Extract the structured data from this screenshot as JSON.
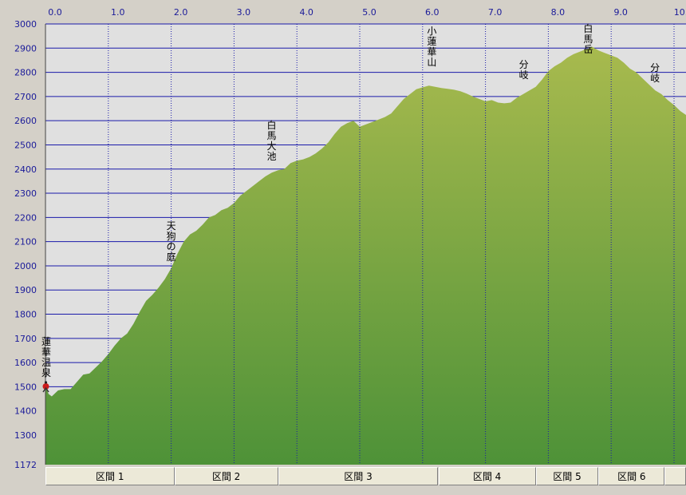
{
  "chart_data": {
    "type": "area",
    "title": "",
    "xlabel": "",
    "ylabel": "",
    "xlim": [
      0,
      10.2
    ],
    "ylim": [
      1172,
      3000
    ],
    "x_ticks": [
      "0.0",
      "1.0",
      "2.0",
      "3.0",
      "4.0",
      "5.0",
      "6.0",
      "7.0",
      "8.0",
      "9.0",
      "10.0"
    ],
    "y_ticks": [
      "3000",
      "2900",
      "2800",
      "2700",
      "2600",
      "2500",
      "2400",
      "2300",
      "2200",
      "2100",
      "2000",
      "1900",
      "1800",
      "1700",
      "1600",
      "1500",
      "1400",
      "1300",
      "1172"
    ],
    "grid": true,
    "colors": {
      "plot_bg": "#e0e0e0",
      "fill_top": "#a8ba4e",
      "fill_bottom": "#4e9238",
      "grid": "#1a1aaa",
      "tick_text": "#1a1a99"
    },
    "series": [
      {
        "x": [
          0.0,
          0.05,
          0.1,
          0.2,
          0.3,
          0.4,
          0.5,
          0.6,
          0.7,
          0.8,
          0.9,
          1.0,
          1.1,
          1.2,
          1.3,
          1.4,
          1.5,
          1.6,
          1.7,
          1.8,
          1.9,
          2.0,
          2.1,
          2.2,
          2.3,
          2.4,
          2.5,
          2.6,
          2.7,
          2.8,
          2.9,
          3.0,
          3.1,
          3.2,
          3.3,
          3.4,
          3.5,
          3.6,
          3.7,
          3.8,
          3.9,
          4.0,
          4.1,
          4.2,
          4.3,
          4.4,
          4.5,
          4.6,
          4.7,
          4.8,
          4.9,
          5.0,
          5.1,
          5.2,
          5.3,
          5.4,
          5.5,
          5.6,
          5.7,
          5.8,
          5.9,
          6.0,
          6.1,
          6.2,
          6.3,
          6.4,
          6.5,
          6.6,
          6.7,
          6.8,
          6.9,
          7.0,
          7.1,
          7.2,
          7.3,
          7.4,
          7.5,
          7.6,
          7.7,
          7.8,
          7.9,
          8.0,
          8.1,
          8.2,
          8.3,
          8.4,
          8.5,
          8.6,
          8.7,
          8.8,
          8.9,
          9.0,
          9.1,
          9.2,
          9.3,
          9.4,
          9.5,
          9.6,
          9.7,
          9.8,
          9.9,
          10.0,
          10.1,
          10.2
        ],
        "y": [
          1500,
          1470,
          1460,
          1485,
          1490,
          1490,
          1520,
          1550,
          1555,
          1580,
          1605,
          1635,
          1670,
          1700,
          1720,
          1760,
          1810,
          1855,
          1880,
          1910,
          1945,
          1990,
          2050,
          2100,
          2130,
          2145,
          2170,
          2200,
          2210,
          2230,
          2240,
          2260,
          2290,
          2310,
          2330,
          2350,
          2370,
          2385,
          2395,
          2400,
          2425,
          2435,
          2440,
          2450,
          2465,
          2485,
          2510,
          2545,
          2575,
          2590,
          2600,
          2575,
          2585,
          2595,
          2605,
          2615,
          2630,
          2660,
          2690,
          2710,
          2730,
          2738,
          2745,
          2740,
          2735,
          2732,
          2728,
          2722,
          2712,
          2700,
          2690,
          2680,
          2685,
          2675,
          2672,
          2675,
          2695,
          2710,
          2725,
          2740,
          2770,
          2805,
          2825,
          2840,
          2860,
          2875,
          2885,
          2895,
          2905,
          2890,
          2880,
          2870,
          2860,
          2840,
          2815,
          2800,
          2775,
          2750,
          2725,
          2710,
          2685,
          2665,
          2640,
          2622
        ]
      }
    ],
    "annotations": [
      {
        "text": "蓮華温泉",
        "x": 0.0,
        "y": 1500
      },
      {
        "text": "天狗の庭",
        "x": 2.0,
        "y": 1990
      },
      {
        "text": "白馬大池",
        "x": 3.7,
        "y": 2400
      },
      {
        "text": "小蓮華山",
        "x": 6.3,
        "y": 2740
      },
      {
        "text": "分岐",
        "x": 7.8,
        "y": 2740
      },
      {
        "text": "白馬岳",
        "x": 8.8,
        "y": 2905
      },
      {
        "text": "分岐",
        "x": 9.85,
        "y": 2685
      }
    ]
  },
  "sections": [
    {
      "label": "区間 1",
      "start": 0.0,
      "end": 2.05
    },
    {
      "label": "区間 2",
      "start": 2.05,
      "end": 3.7
    },
    {
      "label": "区間 3",
      "start": 3.7,
      "end": 6.25
    },
    {
      "label": "区間 4",
      "start": 6.25,
      "end": 7.8
    },
    {
      "label": "区間 5",
      "start": 7.8,
      "end": 8.8
    },
    {
      "label": "区間 6",
      "start": 8.8,
      "end": 9.85
    },
    {
      "label": "",
      "start": 9.85,
      "end": 10.2
    }
  ],
  "icons": {
    "start_marker": "hiker-icon"
  }
}
